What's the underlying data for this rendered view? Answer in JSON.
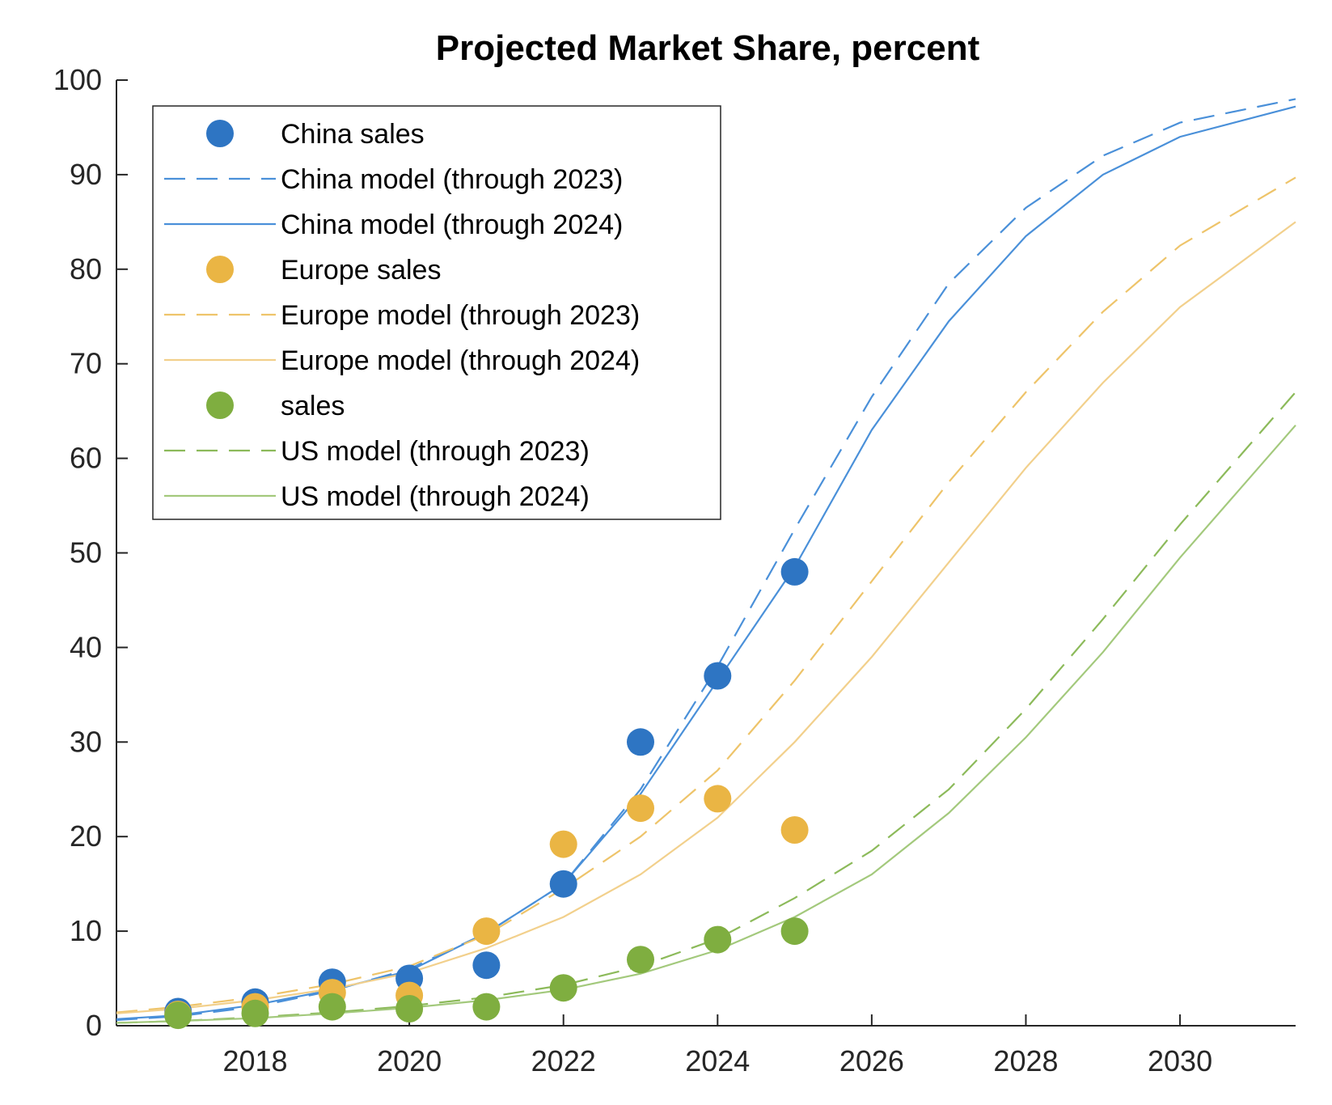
{
  "chart_data": {
    "type": "line",
    "title": "Projected Market Share, percent",
    "xlabel": "",
    "ylabel": "",
    "xlim": [
      2016.2,
      2031.5
    ],
    "ylim": [
      0,
      100
    ],
    "x_ticks": [
      2018,
      2020,
      2022,
      2024,
      2026,
      2028,
      2030
    ],
    "y_ticks": [
      0,
      10,
      20,
      30,
      40,
      50,
      60,
      70,
      80,
      90,
      100
    ],
    "grid": false,
    "legend_position": "top-left",
    "series": [
      {
        "name": "China sales",
        "kind": "scatter",
        "color": "#2E75C3",
        "x": [
          2017,
          2018,
          2019,
          2020,
          2021,
          2022,
          2023,
          2024,
          2025
        ],
        "y": [
          1.5,
          2.5,
          4.6,
          5.0,
          6.4,
          15.0,
          30.0,
          37.0,
          48.0
        ]
      },
      {
        "name": "China model (through 2023)",
        "kind": "line",
        "dash": "dashed",
        "color": "#4A90D9",
        "x": [
          2016.2,
          2017,
          2018,
          2019,
          2020,
          2021,
          2022,
          2023,
          2024,
          2025,
          2026,
          2027,
          2028,
          2029,
          2030,
          2031.5
        ],
        "y": [
          0.6,
          1.0,
          2.0,
          3.7,
          6.0,
          9.8,
          15.0,
          25.0,
          38.0,
          52.5,
          66.5,
          78.5,
          86.5,
          92.0,
          95.5,
          98.0
        ]
      },
      {
        "name": "China model (through 2024)",
        "kind": "line",
        "dash": "solid",
        "color": "#4A90D9",
        "x": [
          2016.2,
          2017,
          2018,
          2019,
          2020,
          2021,
          2022,
          2023,
          2024,
          2025,
          2026,
          2027,
          2028,
          2029,
          2030,
          2031.5
        ],
        "y": [
          0.7,
          1.1,
          2.2,
          3.8,
          5.8,
          9.8,
          15.0,
          24.5,
          36.5,
          48.5,
          63.0,
          74.5,
          83.5,
          90.0,
          94.0,
          97.2
        ]
      },
      {
        "name": "Europe sales",
        "kind": "scatter",
        "color": "#EAB544",
        "x": [
          2017,
          2018,
          2019,
          2020,
          2021,
          2022,
          2023,
          2024,
          2025
        ],
        "y": [
          1.2,
          2.0,
          3.5,
          3.2,
          10.0,
          19.2,
          23.0,
          24.0,
          20.7
        ]
      },
      {
        "name": "Europe model (through 2023)",
        "kind": "line",
        "dash": "dashed",
        "color": "#EEC46A",
        "x": [
          2016.2,
          2017,
          2018,
          2019,
          2020,
          2021,
          2022,
          2023,
          2024,
          2025,
          2026,
          2027,
          2028,
          2029,
          2030,
          2031.5
        ],
        "y": [
          1.4,
          2.0,
          3.0,
          4.4,
          6.3,
          9.6,
          14.5,
          20.0,
          27.0,
          36.5,
          47.0,
          57.5,
          67.0,
          75.5,
          82.5,
          89.7
        ]
      },
      {
        "name": "Europe model (through 2024)",
        "kind": "line",
        "dash": "solid",
        "color": "#F2D08C",
        "x": [
          2016.2,
          2017,
          2018,
          2019,
          2020,
          2021,
          2022,
          2023,
          2024,
          2025,
          2026,
          2027,
          2028,
          2029,
          2030,
          2031.5
        ],
        "y": [
          1.3,
          1.8,
          2.7,
          3.9,
          5.6,
          8.2,
          11.5,
          16.0,
          22.0,
          30.0,
          39.0,
          49.0,
          59.0,
          68.0,
          76.0,
          85.0
        ]
      },
      {
        "name": "sales",
        "kind": "scatter",
        "color": "#7FAE40",
        "x": [
          2017,
          2018,
          2019,
          2020,
          2021,
          2022,
          2023,
          2024,
          2025
        ],
        "y": [
          1.1,
          1.3,
          2.0,
          1.8,
          2.0,
          4.0,
          7.0,
          9.1,
          10.0
        ]
      },
      {
        "name": "US model (through 2023)",
        "kind": "line",
        "dash": "dashed",
        "color": "#8CBA5A",
        "x": [
          2016.2,
          2017,
          2018,
          2019,
          2020,
          2021,
          2022,
          2023,
          2024,
          2025,
          2026,
          2027,
          2028,
          2029,
          2030,
          2031.5
        ],
        "y": [
          0.3,
          0.5,
          0.9,
          1.4,
          2.1,
          3.0,
          4.3,
          6.3,
          9.2,
          13.5,
          18.5,
          25.0,
          33.5,
          43.0,
          53.0,
          67.0
        ]
      },
      {
        "name": "US model (through 2024)",
        "kind": "line",
        "dash": "solid",
        "color": "#A3C97C",
        "x": [
          2016.2,
          2017,
          2018,
          2019,
          2020,
          2021,
          2022,
          2023,
          2024,
          2025,
          2026,
          2027,
          2028,
          2029,
          2030,
          2031.5
        ],
        "y": [
          0.3,
          0.5,
          0.8,
          1.3,
          1.9,
          2.7,
          3.8,
          5.5,
          8.0,
          11.5,
          16.0,
          22.5,
          30.5,
          39.5,
          49.5,
          63.5
        ]
      }
    ]
  }
}
